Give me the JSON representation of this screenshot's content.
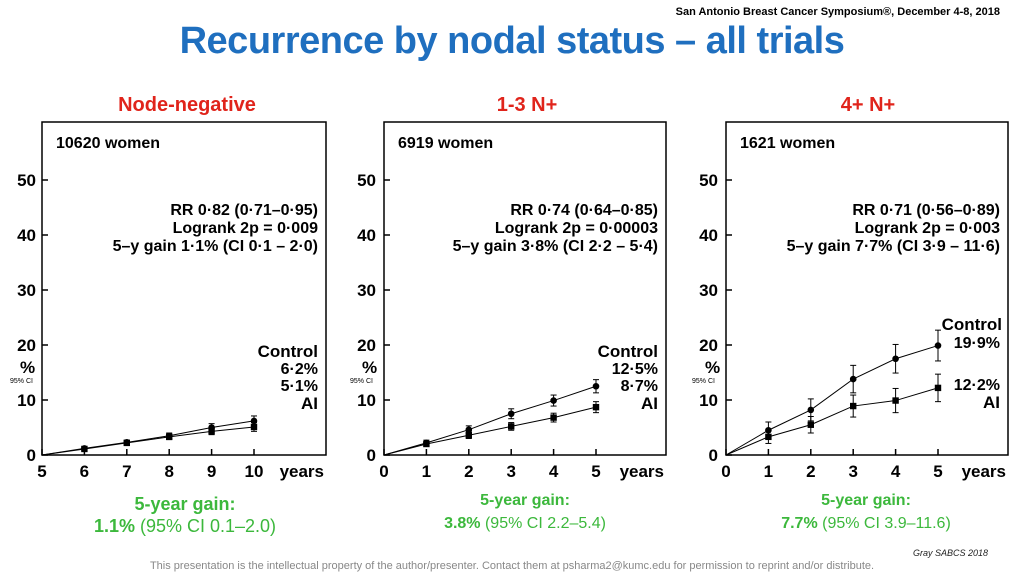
{
  "header": {
    "conference": "San Antonio Breast Cancer Symposium®, December 4-8, 2018",
    "title": "Recurrence by nodal status – all trials"
  },
  "footer": {
    "disclaimer": "This presentation is the intellectual property of the author/presenter. Contact them at psharma2@kumc.edu for permission to reprint and/or distribute.",
    "credit": "Gray SABCS 2018"
  },
  "panels": [
    {
      "title": "Node-negative",
      "gain_heading": "5-year gain:",
      "gain_value": "1.1%",
      "gain_ci": " (95% CI 0.1–2.0)"
    },
    {
      "title": "1-3 N+",
      "gain_heading": "5-year gain:",
      "gain_value": "3.8%",
      "gain_ci": " (95% CI 2.2–5.4)"
    },
    {
      "title": "4+ N+",
      "gain_heading": "5-year gain:",
      "gain_value": "7.7%",
      "gain_ci": " (95% CI 3.9–11.6)"
    }
  ],
  "chart_data": [
    {
      "type": "line",
      "women": "10620 women",
      "stats": [
        "RR 0·82 (0·71–0·95)",
        "Logrank 2p = 0·009",
        "5–y gain 1·1% (CI 0·1 – 2·0)"
      ],
      "ylabel": "%",
      "ci_note": "95% CI",
      "ylim": [
        0,
        55
      ],
      "yticks": [
        0,
        10,
        20,
        30,
        40,
        50
      ],
      "xlim": [
        5,
        10
      ],
      "xticks": [
        5,
        6,
        7,
        8,
        9,
        10
      ],
      "xunit": "years",
      "series": [
        {
          "name": "Control",
          "marker": "circle",
          "end_label": "6·2%",
          "x": [
            5,
            6,
            7,
            8,
            9,
            10
          ],
          "values": [
            0,
            1.2,
            2.3,
            3.5,
            5.0,
            6.2
          ],
          "err": [
            0,
            0.3,
            0.4,
            0.5,
            0.7,
            0.9
          ]
        },
        {
          "name": "AI",
          "marker": "square",
          "end_label": "5·1%",
          "x": [
            5,
            6,
            7,
            8,
            9,
            10
          ],
          "values": [
            0,
            1.1,
            2.2,
            3.3,
            4.3,
            5.1
          ],
          "err": [
            0,
            0.3,
            0.4,
            0.5,
            0.6,
            0.8
          ]
        }
      ]
    },
    {
      "type": "line",
      "women": "6919 women",
      "stats": [
        "RR 0·74 (0·64–0·85)",
        "Logrank 2p = 0·00003",
        "5–y gain 3·8% (CI 2·2 – 5·4)"
      ],
      "ylabel": "%",
      "ci_note": "95% CI",
      "ylim": [
        0,
        55
      ],
      "yticks": [
        0,
        10,
        20,
        30,
        40,
        50
      ],
      "xlim": [
        0,
        5
      ],
      "xticks": [
        0,
        1,
        2,
        3,
        4,
        5
      ],
      "xunit": "years",
      "series": [
        {
          "name": "Control",
          "marker": "circle",
          "end_label": "12·5%",
          "x": [
            0,
            1,
            2,
            3,
            4,
            5
          ],
          "values": [
            0,
            2.2,
            4.6,
            7.5,
            9.9,
            12.5
          ],
          "err": [
            0,
            0.5,
            0.7,
            0.9,
            1.0,
            1.2
          ]
        },
        {
          "name": "AI",
          "marker": "square",
          "end_label": "8·7%",
          "x": [
            0,
            1,
            2,
            3,
            4,
            5
          ],
          "values": [
            0,
            2.0,
            3.6,
            5.2,
            6.8,
            8.7
          ],
          "err": [
            0,
            0.4,
            0.6,
            0.7,
            0.8,
            1.0
          ]
        }
      ]
    },
    {
      "type": "line",
      "women": "1621 women",
      "stats": [
        "RR 0·71 (0·56–0·89)",
        "Logrank 2p = 0·003",
        "5–y gain 7·7% (CI 3·9 – 11·6)"
      ],
      "ylabel": "%",
      "ci_note": "95% CI",
      "ylim": [
        0,
        55
      ],
      "yticks": [
        0,
        10,
        20,
        30,
        40,
        50
      ],
      "xlim": [
        0,
        5
      ],
      "xticks": [
        0,
        1,
        2,
        3,
        4,
        5
      ],
      "xunit": "years",
      "series": [
        {
          "name": "Control",
          "marker": "circle",
          "end_label": "19·9%",
          "x": [
            0,
            1,
            2,
            3,
            4,
            5
          ],
          "values": [
            0,
            4.5,
            8.2,
            13.8,
            17.5,
            19.9
          ],
          "err": [
            0,
            1.5,
            2.0,
            2.5,
            2.6,
            2.8
          ]
        },
        {
          "name": "AI",
          "marker": "square",
          "end_label": "12·2%",
          "x": [
            0,
            1,
            2,
            3,
            4,
            5
          ],
          "values": [
            0,
            3.3,
            5.5,
            8.9,
            9.9,
            12.2
          ],
          "err": [
            0,
            1.2,
            1.5,
            2.0,
            2.2,
            2.5
          ]
        }
      ]
    }
  ]
}
